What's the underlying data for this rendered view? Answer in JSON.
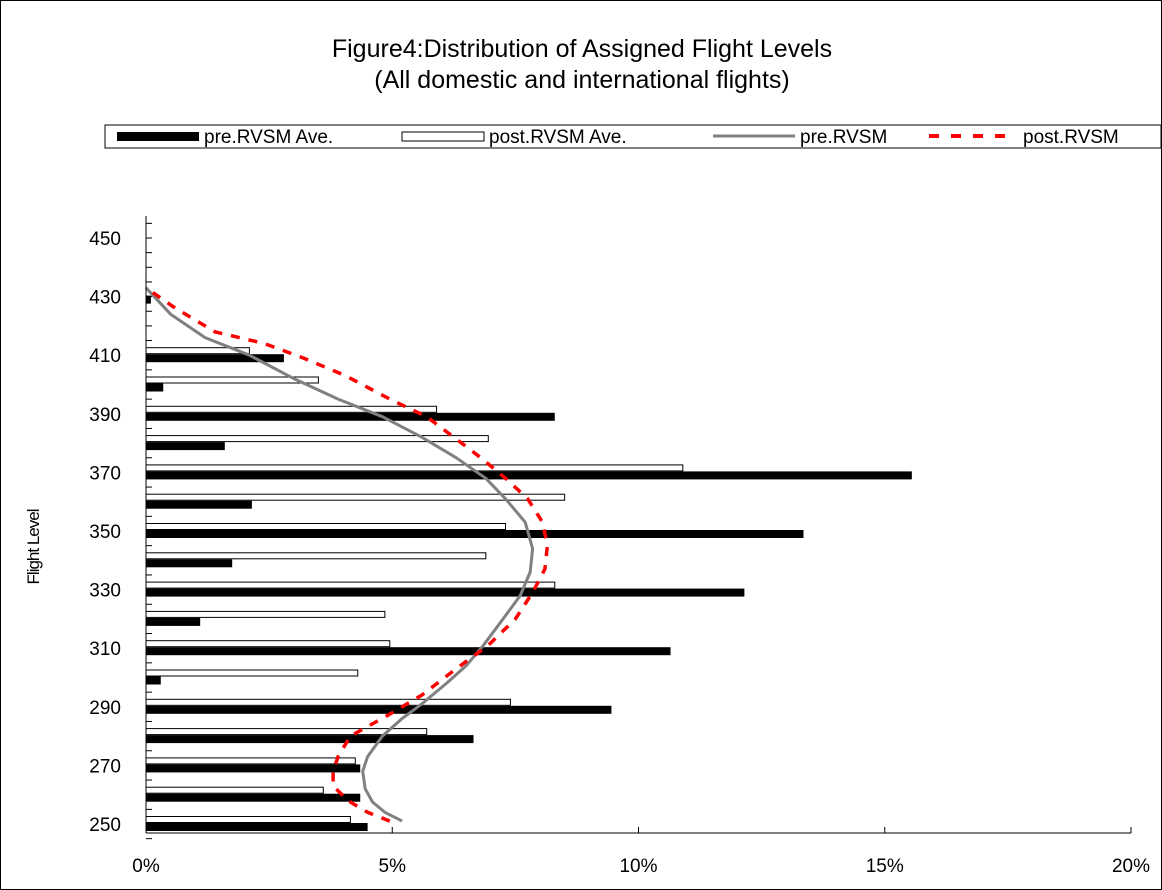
{
  "chart_data": {
    "type": "bar",
    "orientation": "horizontal",
    "title": "Figure4:Distribution of Assigned Flight Levels",
    "subtitle": "(All domestic and international flights)",
    "ylabel": "Flight Level",
    "xlabel": "",
    "xlim": [
      0,
      20
    ],
    "x_ticks": [
      "0%",
      "5%",
      "10%",
      "15%",
      "20%"
    ],
    "y_ticks": [
      "250",
      "270",
      "290",
      "310",
      "330",
      "350",
      "370",
      "390",
      "410",
      "430",
      "450"
    ],
    "ylim": [
      245,
      455
    ],
    "grid": false,
    "legend_position": "top",
    "categories": [
      250,
      260,
      270,
      280,
      290,
      300,
      310,
      320,
      330,
      340,
      350,
      360,
      370,
      380,
      390,
      400,
      410,
      420,
      430
    ],
    "series": [
      {
        "name": "pre.RVSM Ave.",
        "kind": "bar",
        "color": "#000000",
        "values": [
          4.5,
          4.35,
          4.35,
          6.65,
          9.45,
          0.3,
          10.65,
          1.1,
          12.15,
          1.75,
          13.35,
          2.15,
          15.55,
          1.6,
          8.3,
          0.35,
          2.8,
          0,
          0.1
        ]
      },
      {
        "name": "post.RVSM Ave.",
        "kind": "bar",
        "color": "#ffffff",
        "values": [
          4.15,
          3.6,
          4.25,
          5.7,
          7.4,
          4.3,
          4.95,
          4.85,
          8.3,
          6.9,
          7.3,
          8.5,
          10.9,
          6.95,
          5.9,
          3.5,
          2.1,
          0,
          0
        ]
      },
      {
        "name": "pre.RVSM",
        "kind": "line",
        "color": "#808080",
        "points": [
          [
            5.2,
            251
          ],
          [
            4.85,
            254
          ],
          [
            4.6,
            257.5
          ],
          [
            4.45,
            262
          ],
          [
            4.4,
            268
          ],
          [
            4.5,
            273
          ],
          [
            4.8,
            280
          ],
          [
            5.2,
            286
          ],
          [
            5.6,
            291
          ],
          [
            6.1,
            298
          ],
          [
            6.5,
            304
          ],
          [
            6.85,
            311
          ],
          [
            7.25,
            320
          ],
          [
            7.6,
            328
          ],
          [
            7.8,
            336
          ],
          [
            7.85,
            344
          ],
          [
            7.7,
            353
          ],
          [
            7.3,
            361
          ],
          [
            6.9,
            368
          ],
          [
            6.3,
            375
          ],
          [
            5.6,
            382
          ],
          [
            4.8,
            389
          ],
          [
            3.9,
            395
          ],
          [
            3.0,
            402
          ],
          [
            2.1,
            410
          ],
          [
            1.2,
            416
          ],
          [
            0.5,
            424
          ],
          [
            0.0,
            433
          ]
        ]
      },
      {
        "name": "post.RVSM",
        "kind": "line",
        "dashed": true,
        "color": "#ff0000",
        "points": [
          [
            4.95,
            251
          ],
          [
            4.5,
            254
          ],
          [
            4.1,
            258
          ],
          [
            3.8,
            263
          ],
          [
            3.8,
            268
          ],
          [
            3.9,
            273
          ],
          [
            4.15,
            280
          ],
          [
            4.9,
            287
          ],
          [
            5.6,
            294
          ],
          [
            6.3,
            303
          ],
          [
            6.95,
            311
          ],
          [
            7.5,
            320
          ],
          [
            7.85,
            329
          ],
          [
            8.1,
            337
          ],
          [
            8.15,
            345
          ],
          [
            8.05,
            353
          ],
          [
            7.75,
            361
          ],
          [
            7.3,
            368
          ],
          [
            6.8,
            375
          ],
          [
            6.25,
            382
          ],
          [
            5.7,
            389
          ],
          [
            4.95,
            395
          ],
          [
            4.05,
            403
          ],
          [
            3.2,
            409
          ],
          [
            2.4,
            414
          ],
          [
            1.4,
            418
          ],
          [
            0.6,
            426
          ],
          [
            0.0,
            433
          ]
        ]
      }
    ]
  }
}
